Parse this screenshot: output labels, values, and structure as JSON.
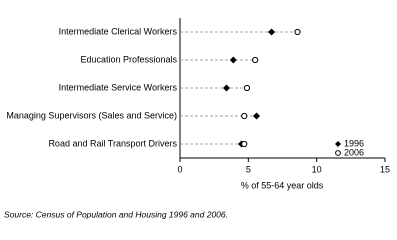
{
  "chart_data": {
    "type": "dot",
    "categories": [
      "Intermediate Clerical Workers",
      "Education Professionals",
      "Intermediate Service Workers",
      "Managing Supervisors (Sales and Service)",
      "Road and Rail Transport Drivers"
    ],
    "series": [
      {
        "name": "1996",
        "color": "#000000",
        "marker": "diamond",
        "values": [
          6.7,
          3.9,
          3.4,
          5.6,
          4.5
        ]
      },
      {
        "name": "2006",
        "color": "#000000",
        "marker": "open-circle",
        "values": [
          8.6,
          5.5,
          4.9,
          4.7,
          4.7
        ]
      }
    ],
    "xlabel": "% of 55-64 year olds",
    "xlim": [
      0,
      15
    ],
    "xticks": [
      0,
      5,
      10,
      15
    ],
    "legend": "lower right",
    "source": "Source: Census of Population and Housing 1996 and 2006."
  }
}
